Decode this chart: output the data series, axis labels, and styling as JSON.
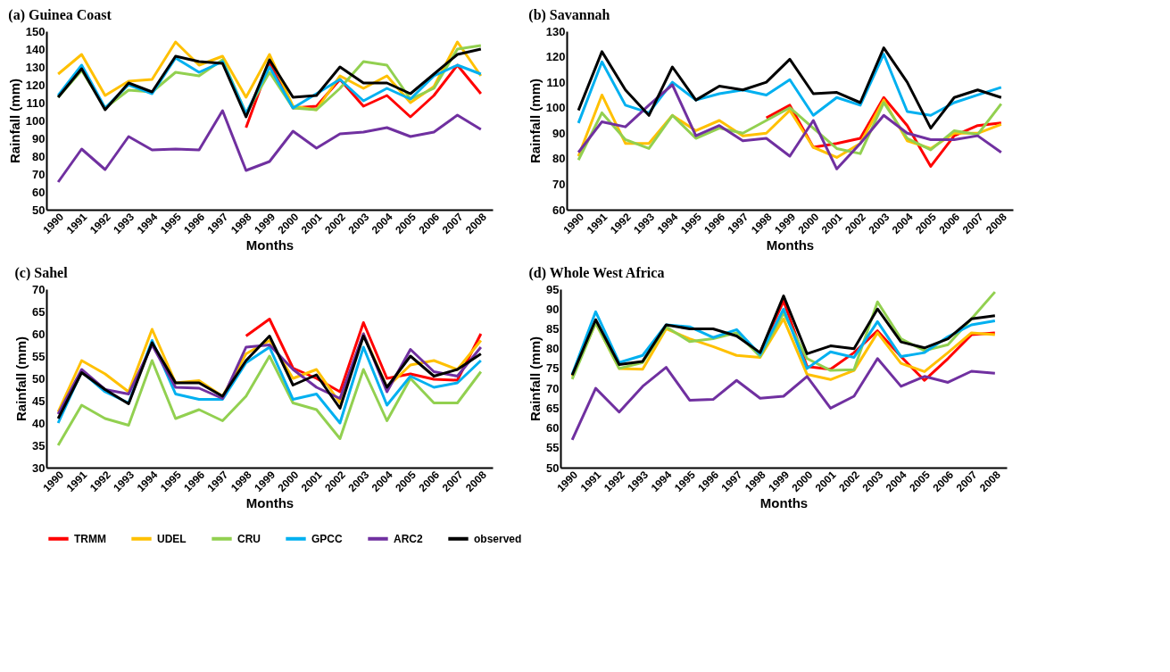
{
  "chart_data": [
    {
      "type": "line",
      "title": "(a) Guinea Coast",
      "xlabel": "Months",
      "ylabel": "Rainfall (mm)",
      "legend": "bottom",
      "grid": false,
      "marker": "none",
      "line_style": "solid",
      "categories": [
        "1990",
        "1991",
        "1992",
        "1993",
        "1994",
        "1995",
        "1996",
        "1997",
        "1998",
        "1999",
        "2000",
        "2001",
        "2002",
        "2003",
        "2004",
        "2005",
        "2006",
        "2007",
        "2008"
      ],
      "ylim": [
        50,
        150
      ],
      "yticks": [
        50,
        60,
        70,
        80,
        90,
        100,
        110,
        120,
        130,
        140,
        150
      ],
      "series": [
        {
          "name": "TRMM",
          "color": "#ff0000",
          "values": [
            null,
            null,
            null,
            null,
            null,
            null,
            null,
            null,
            96,
            132,
            107,
            108,
            123,
            108,
            114,
            102,
            114,
            131,
            115
          ]
        },
        {
          "name": "UDEL",
          "color": "#ffc000",
          "values": [
            126,
            137,
            114,
            122,
            123,
            144,
            131,
            136,
            113,
            137,
            108,
            106,
            125,
            118,
            125,
            110,
            119,
            144,
            125
          ]
        },
        {
          "name": "CRU",
          "color": "#92d050",
          "values": [
            113,
            128,
            107,
            117,
            116,
            127,
            125,
            134,
            104,
            127,
            107,
            106,
            118,
            133,
            131,
            112,
            118,
            140,
            142
          ]
        },
        {
          "name": "GPCC",
          "color": "#00b0f0",
          "values": [
            114,
            131,
            107,
            120,
            115,
            135,
            127,
            133,
            104,
            130,
            107,
            115,
            123,
            111,
            118,
            112,
            125,
            131,
            126
          ]
        },
        {
          "name": "ARC2",
          "color": "#7030a0",
          "values": [
            65.5,
            84,
            72.5,
            91,
            83.5,
            84,
            83.5,
            105.5,
            72,
            77,
            94,
            84.5,
            92.5,
            93.5,
            96,
            91,
            93.5,
            103,
            95
          ]
        },
        {
          "name": "observed",
          "color": "#000000",
          "values": [
            113,
            129,
            106,
            121,
            116,
            136,
            133,
            132,
            102,
            134,
            113,
            114,
            130,
            121,
            121,
            115,
            126,
            137,
            140
          ]
        }
      ]
    },
    {
      "type": "line",
      "title": "(b) Savannah",
      "xlabel": "Months",
      "ylabel": "Rainfall (mm)",
      "legend": "bottom",
      "grid": false,
      "marker": "none",
      "line_style": "solid",
      "categories": [
        "1990",
        "1991",
        "1992",
        "1993",
        "1994",
        "1995",
        "1996",
        "1997",
        "1998",
        "1999",
        "2000",
        "2001",
        "2002",
        "2003",
        "2004",
        "2005",
        "2006",
        "2007",
        "2008"
      ],
      "ylim": [
        60,
        130
      ],
      "yticks": [
        60,
        70,
        80,
        90,
        100,
        110,
        120,
        130
      ],
      "series": [
        {
          "name": "TRMM",
          "color": "#ff0000",
          "values": [
            null,
            null,
            null,
            null,
            null,
            null,
            null,
            null,
            96,
            101,
            84.5,
            86,
            88,
            104,
            93,
            77,
            89,
            93,
            94
          ]
        },
        {
          "name": "UDEL",
          "color": "#ffc000",
          "values": [
            81,
            105,
            86,
            86,
            97,
            91,
            95,
            89,
            90,
            99,
            84.5,
            80.5,
            86,
            103,
            87,
            84,
            90,
            90,
            93.5
          ]
        },
        {
          "name": "CRU",
          "color": "#92d050",
          "values": [
            79.5,
            98,
            87.5,
            84,
            97,
            88,
            92,
            90,
            95,
            100,
            92,
            84,
            82,
            102,
            88,
            83.5,
            91,
            89.5,
            101.5
          ]
        },
        {
          "name": "GPCC",
          "color": "#00b0f0",
          "values": [
            94,
            118,
            101,
            98,
            110,
            103,
            105.5,
            107,
            105,
            111,
            97,
            104,
            101,
            121,
            98.5,
            97,
            102,
            105,
            108
          ]
        },
        {
          "name": "ARC2",
          "color": "#7030a0",
          "values": [
            82.5,
            94.5,
            92.5,
            101,
            109,
            89,
            93,
            87,
            88,
            81,
            95,
            76,
            86,
            97,
            90,
            87.5,
            87.5,
            89,
            82.5
          ]
        },
        {
          "name": "observed",
          "color": "#000000",
          "values": [
            99,
            122,
            107,
            97,
            116,
            103,
            108.5,
            107,
            110,
            119,
            105.5,
            106,
            102,
            123.5,
            110,
            92,
            104,
            107,
            104
          ]
        }
      ]
    },
    {
      "type": "line",
      "title": "(c) Sahel",
      "xlabel": "Months",
      "ylabel": "Rainfall (mm)",
      "legend": "bottom",
      "grid": false,
      "marker": "none",
      "line_style": "solid",
      "categories": [
        "1990",
        "1991",
        "1992",
        "1993",
        "1994",
        "1995",
        "1996",
        "1997",
        "1998",
        "1999",
        "2000",
        "2001",
        "2002",
        "2003",
        "2004",
        "2005",
        "2006",
        "2007",
        "2008"
      ],
      "ylim": [
        30,
        70
      ],
      "yticks": [
        30,
        35,
        40,
        45,
        50,
        55,
        60,
        65,
        70
      ],
      "series": [
        {
          "name": "TRMM",
          "color": "#ff0000",
          "values": [
            null,
            null,
            null,
            null,
            null,
            null,
            null,
            null,
            59.5,
            63.3,
            52.3,
            50,
            47,
            62.5,
            50,
            51,
            49.8,
            49.6,
            60
          ]
        },
        {
          "name": "UDEL",
          "color": "#ffc000",
          "values": [
            42.5,
            54,
            51,
            47,
            61,
            49,
            49.5,
            46,
            55.5,
            58.5,
            50,
            52,
            44.5,
            60,
            48,
            53,
            54,
            52,
            58.5
          ]
        },
        {
          "name": "CRU",
          "color": "#92d050",
          "values": [
            35,
            44,
            41,
            39.5,
            54,
            41,
            43,
            40.5,
            46,
            55,
            44.5,
            43,
            36.5,
            52,
            40.5,
            50,
            44.5,
            44.5,
            51.5
          ]
        },
        {
          "name": "GPCC",
          "color": "#00b0f0",
          "values": [
            40,
            51.5,
            47,
            44.5,
            58.5,
            46.5,
            45.3,
            45.3,
            53.5,
            57,
            45.3,
            46.5,
            40,
            57,
            44,
            50.5,
            48,
            49,
            54
          ]
        },
        {
          "name": "ARC2",
          "color": "#7030a0",
          "values": [
            42,
            52,
            47.5,
            46.5,
            57.5,
            48,
            47.8,
            45.5,
            57,
            57.5,
            52,
            48,
            45.5,
            60,
            47,
            56.5,
            51.5,
            50.5,
            57
          ]
        },
        {
          "name": "observed",
          "color": "#000000",
          "values": [
            41,
            51.3,
            47.5,
            44.3,
            58,
            49,
            49,
            46,
            54,
            59.5,
            48.5,
            50.8,
            43.3,
            59.5,
            48,
            55,
            50.5,
            52,
            55.5
          ]
        }
      ]
    },
    {
      "type": "line",
      "title": "(d) Whole West Africa",
      "xlabel": "Months",
      "ylabel": "Rainfall (mm)",
      "legend": "bottom",
      "grid": false,
      "marker": "none",
      "line_style": "solid",
      "categories": [
        "1990",
        "1991",
        "1992",
        "1993",
        "1994",
        "1995",
        "1996",
        "1997",
        "1998",
        "1999",
        "2000",
        "2001",
        "2002",
        "2003",
        "2004",
        "2005",
        "2006",
        "2007",
        "2008"
      ],
      "ylim": [
        50,
        95
      ],
      "yticks": [
        50,
        55,
        60,
        65,
        70,
        75,
        80,
        85,
        90,
        95
      ],
      "series": [
        {
          "name": "TRMM",
          "color": "#ff0000",
          "values": [
            null,
            null,
            null,
            null,
            null,
            null,
            null,
            null,
            79,
            92,
            75.5,
            74.8,
            79,
            84.5,
            78,
            72,
            77.5,
            83.5,
            84
          ]
        },
        {
          "name": "UDEL",
          "color": "#ffc000",
          "values": [
            73,
            86.5,
            75,
            74.8,
            85,
            82.5,
            80.5,
            78.3,
            77.8,
            87.5,
            73.5,
            72.2,
            74.5,
            84,
            76.3,
            74.2,
            79,
            84,
            83.5
          ]
        },
        {
          "name": "CRU",
          "color": "#92d050",
          "values": [
            72.3,
            86.5,
            75,
            76.5,
            85.5,
            81.8,
            82.5,
            84,
            78,
            89,
            77.5,
            74.5,
            74.7,
            91.8,
            82.5,
            79.5,
            81,
            87.5,
            94.3
          ]
        },
        {
          "name": "GPCC",
          "color": "#00b0f0",
          "values": [
            73.5,
            89.3,
            76.5,
            78.3,
            86,
            85.5,
            82.8,
            84.8,
            78.5,
            90,
            75,
            79.2,
            77.8,
            86.8,
            78,
            79,
            83,
            86,
            87
          ]
        },
        {
          "name": "ARC2",
          "color": "#7030a0",
          "values": [
            57,
            70,
            64,
            70.5,
            75.3,
            67,
            67.2,
            72,
            67.5,
            68,
            73,
            65,
            68,
            77.5,
            70.5,
            73,
            71.5,
            74.3,
            73.8
          ]
        },
        {
          "name": "observed",
          "color": "#000000",
          "values": [
            73.3,
            87.3,
            76,
            76.8,
            86,
            85,
            85,
            83.2,
            79,
            93.3,
            78.7,
            80.7,
            80,
            90,
            81.7,
            80.2,
            82.5,
            87.5,
            88.3
          ]
        }
      ]
    }
  ]
}
